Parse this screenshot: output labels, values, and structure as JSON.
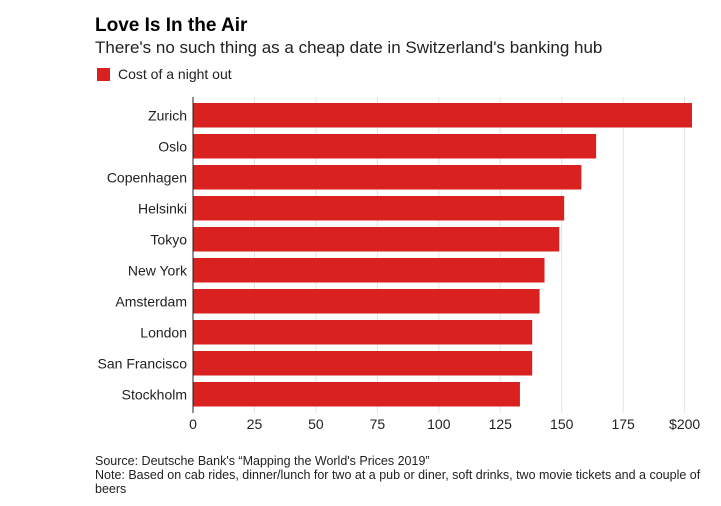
{
  "chart_data": {
    "type": "bar",
    "orientation": "horizontal",
    "title": "Love Is In the Air",
    "subtitle": "There's no such thing as a cheap date in Switzerland's banking hub",
    "legend": {
      "label": "Cost of a night out",
      "placement": "top-left"
    },
    "categories": [
      "Zurich",
      "Oslo",
      "Copenhagen",
      "Helsinki",
      "Tokyo",
      "New York",
      "Amsterdam",
      "London",
      "San Francisco",
      "Stockholm"
    ],
    "series": [
      {
        "name": "Cost of a night out",
        "values": [
          203,
          164,
          158,
          151,
          149,
          143,
          141,
          138,
          138,
          133
        ]
      }
    ],
    "xlim": [
      0,
      203
    ],
    "xticks": [
      0,
      25,
      50,
      75,
      100,
      125,
      150,
      175,
      200
    ],
    "xtick_labels": [
      "0",
      "25",
      "50",
      "75",
      "100",
      "125",
      "150",
      "175",
      "$200"
    ],
    "grid": true,
    "xlabel": "",
    "ylabel": "",
    "colors": {
      "bar": "#d9221f",
      "grid": "#e3e3e3",
      "axis": "#222222"
    }
  },
  "footer": {
    "source": "Source: Deutsche Bank's “Mapping the World's Prices 2019”",
    "note": "Note: Based on cab rides, dinner/lunch for two at a pub or diner, soft drinks, two movie tickets and a couple of beers"
  }
}
